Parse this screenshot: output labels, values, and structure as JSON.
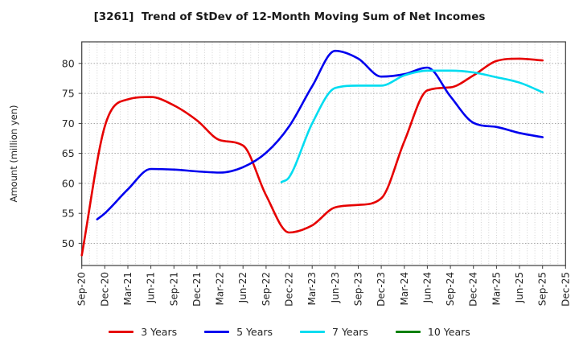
{
  "chart_data": {
    "type": "line",
    "title": "[3261]  Trend of StDev of 12-Month Moving Sum of Net Incomes",
    "ylabel": "Amount (million yen)",
    "x_labels": [
      "Sep-20",
      "Dec-20",
      "Mar-21",
      "Jun-21",
      "Sep-21",
      "Dec-21",
      "Mar-22",
      "Jun-22",
      "Sep-22",
      "Dec-22",
      "Mar-23",
      "Jun-23",
      "Sep-23",
      "Dec-23",
      "Mar-24",
      "Jun-24",
      "Sep-24",
      "Dec-24",
      "Mar-25",
      "Jun-25",
      "Sep-25",
      "Dec-25"
    ],
    "months_per_tick": 3,
    "total_months": 63,
    "y_ticks": [
      50,
      55,
      60,
      65,
      70,
      75,
      80
    ],
    "ylim": [
      46.3,
      83.6
    ],
    "grid": {
      "vertical": "monthly dotted",
      "horizontal": "dashed at y ticks"
    },
    "legend_position": "bottom-center",
    "axis_color": "#3c3c3c",
    "grid_color_v": "#c9c9c9",
    "grid_color_h": "#9a9a9a",
    "series": [
      {
        "name": "3 Years",
        "color": "#e60000",
        "values": [
          48,
          69.5,
          74,
          74.4,
          73,
          70.5,
          67.2,
          66.3,
          58,
          51.8,
          53,
          56,
          56.4,
          57.5,
          67,
          75.5,
          76,
          78,
          80.4,
          80.8,
          80.5,
          null
        ]
      },
      {
        "name": "5 Years",
        "color": "#0000ee",
        "start": {
          "month_index": 2,
          "value": 54
        },
        "values": [
          null,
          55,
          59,
          62.4,
          62.3,
          62,
          61.8,
          62.7,
          65.1,
          69.5,
          76.2,
          82.1,
          80.8,
          77.8,
          78.2,
          79.3,
          74.5,
          70.1,
          69.4,
          68.4,
          67.7,
          null
        ]
      },
      {
        "name": "7 Years",
        "color": "#00dcf0",
        "start": {
          "month_index": 26,
          "value": 60.2
        },
        "values": [
          null,
          null,
          null,
          null,
          null,
          null,
          null,
          null,
          null,
          61,
          70,
          75.9,
          76.3,
          76.3,
          78,
          78.8,
          78.8,
          78.5,
          77.7,
          76.8,
          75.2,
          null
        ]
      },
      {
        "name": "10 Years",
        "color": "#008000",
        "values": [
          null,
          null,
          null,
          null,
          null,
          null,
          null,
          null,
          null,
          null,
          null,
          null,
          null,
          null,
          null,
          null,
          null,
          null,
          null,
          null,
          null,
          null
        ]
      }
    ]
  }
}
